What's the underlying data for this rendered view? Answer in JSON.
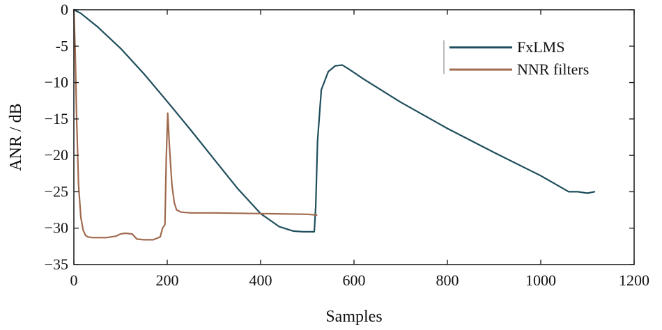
{
  "chart_data": {
    "type": "line",
    "title": "",
    "xlabel": "Samples",
    "ylabel": "ANR / dB",
    "xlim": [
      0,
      1200
    ],
    "ylim": [
      -35,
      0
    ],
    "xticks": [
      0,
      200,
      400,
      600,
      800,
      1000,
      1200
    ],
    "yticks": [
      0,
      -5,
      -10,
      -15,
      -20,
      -25,
      -30,
      -35
    ],
    "xtick_labels": [
      "0",
      "200",
      "400",
      "600",
      "800",
      "1000",
      "1200"
    ],
    "ytick_labels": [
      "0",
      "-5",
      "−10",
      "−15",
      "−20",
      "−25",
      "−30",
      "−35"
    ],
    "legend_position": "top-right",
    "grid": false,
    "series": [
      {
        "name": "FxLMS",
        "color": "#1f4e5c",
        "x": [
          0,
          15,
          50,
          100,
          150,
          200,
          250,
          300,
          350,
          400,
          440,
          470,
          490,
          515,
          518,
          522,
          530,
          545,
          560,
          575,
          590,
          620,
          700,
          800,
          900,
          1000,
          1060,
          1080,
          1100,
          1115
        ],
        "y": [
          0,
          -0.5,
          -2.3,
          -5.3,
          -8.8,
          -12.6,
          -16.5,
          -20.5,
          -24.5,
          -28.0,
          -29.8,
          -30.4,
          -30.5,
          -30.5,
          -27.0,
          -18.0,
          -11.0,
          -8.5,
          -7.7,
          -7.6,
          -8.2,
          -9.5,
          -12.7,
          -16.3,
          -19.6,
          -22.8,
          -25.0,
          -25.0,
          -25.2,
          -25.0
        ]
      },
      {
        "name": "NNR filters",
        "color": "#a06a4e",
        "x": [
          0,
          3,
          6,
          10,
          15,
          20,
          25,
          30,
          40,
          50,
          70,
          90,
          100,
          110,
          125,
          135,
          150,
          170,
          185,
          190,
          195,
          198,
          201,
          205,
          210,
          215,
          220,
          230,
          250,
          300,
          400,
          500,
          520
        ],
        "y": [
          0,
          -6.0,
          -15.0,
          -24.0,
          -28.5,
          -30.3,
          -31.0,
          -31.2,
          -31.3,
          -31.3,
          -31.3,
          -31.1,
          -30.8,
          -30.7,
          -30.8,
          -31.5,
          -31.6,
          -31.6,
          -31.2,
          -30.0,
          -29.5,
          -20.0,
          -14.2,
          -19.0,
          -24.0,
          -26.5,
          -27.5,
          -27.8,
          -27.9,
          -27.9,
          -28.0,
          -28.1,
          -28.2
        ]
      }
    ]
  }
}
